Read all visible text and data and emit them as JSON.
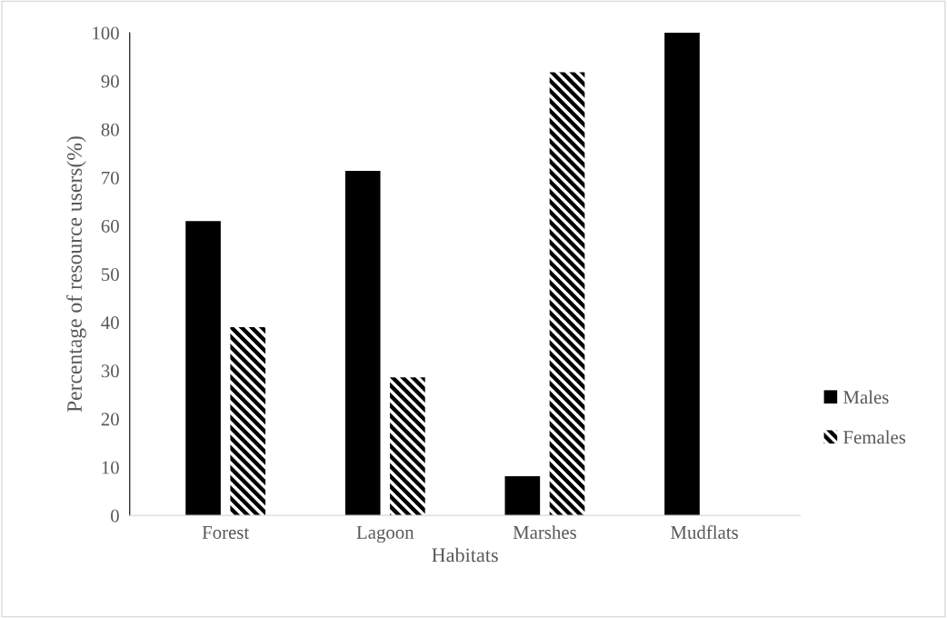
{
  "chart_data": {
    "type": "bar",
    "xlabel": "Habitats",
    "ylabel": "Percentage of resource users(%)",
    "categories": [
      "Forest",
      "Lagoon",
      "Marshes",
      "Mudflats"
    ],
    "series": [
      {
        "name": "Males",
        "color": "#000000",
        "values": [
          61,
          71.4,
          8.1,
          100
        ]
      },
      {
        "name": "Females",
        "color": "#000000",
        "values": [
          39,
          28.6,
          91.8,
          0
        ]
      }
    ],
    "ylim": [
      0,
      100
    ],
    "yticks": [
      0,
      10,
      20,
      30,
      40,
      50,
      60,
      70,
      80,
      90,
      100
    ],
    "grid": false,
    "legend": "right"
  }
}
